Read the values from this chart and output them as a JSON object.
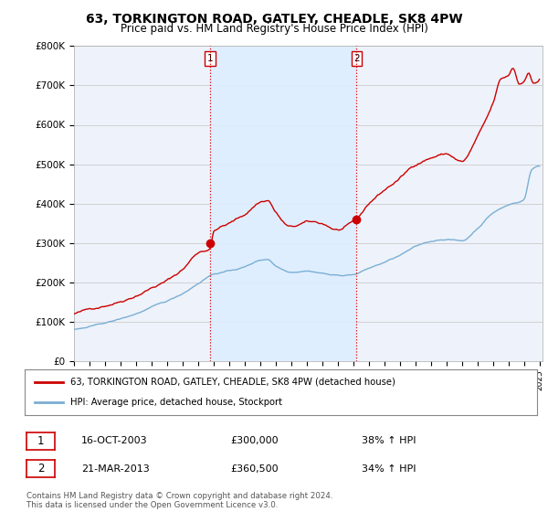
{
  "title": "63, TORKINGTON ROAD, GATLEY, CHEADLE, SK8 4PW",
  "subtitle": "Price paid vs. HM Land Registry's House Price Index (HPI)",
  "title_fontsize": 10,
  "subtitle_fontsize": 8.5,
  "ylabel_ticks": [
    "£0",
    "£100K",
    "£200K",
    "£300K",
    "£400K",
    "£500K",
    "£600K",
    "£700K",
    "£800K"
  ],
  "ytick_values": [
    0,
    100000,
    200000,
    300000,
    400000,
    500000,
    600000,
    700000,
    800000
  ],
  "ylim": [
    0,
    800000
  ],
  "xlim_start": 1995.0,
  "xlim_end": 2025.2,
  "sale1_x": 2003.79,
  "sale1_y": 300000,
  "sale2_x": 2013.22,
  "sale2_y": 360500,
  "vline_color": "#dd0000",
  "sale_dot_color": "#cc0000",
  "red_line_color": "#cc0000",
  "blue_line_color": "#7aafd4",
  "shade_color": "#ddeeff",
  "legend_label_red": "63, TORKINGTON ROAD, GATLEY, CHEADLE, SK8 4PW (detached house)",
  "legend_label_blue": "HPI: Average price, detached house, Stockport",
  "sale1_date": "16-OCT-2003",
  "sale1_price": "£300,000",
  "sale1_hpi": "38% ↑ HPI",
  "sale2_date": "21-MAR-2013",
  "sale2_price": "£360,500",
  "sale2_hpi": "34% ↑ HPI",
  "footer1": "Contains HM Land Registry data © Crown copyright and database right 2024.",
  "footer2": "This data is licensed under the Open Government Licence v3.0.",
  "background_color": "#ffffff",
  "plot_bg_color": "#eef2fa",
  "grid_color": "#cccccc"
}
